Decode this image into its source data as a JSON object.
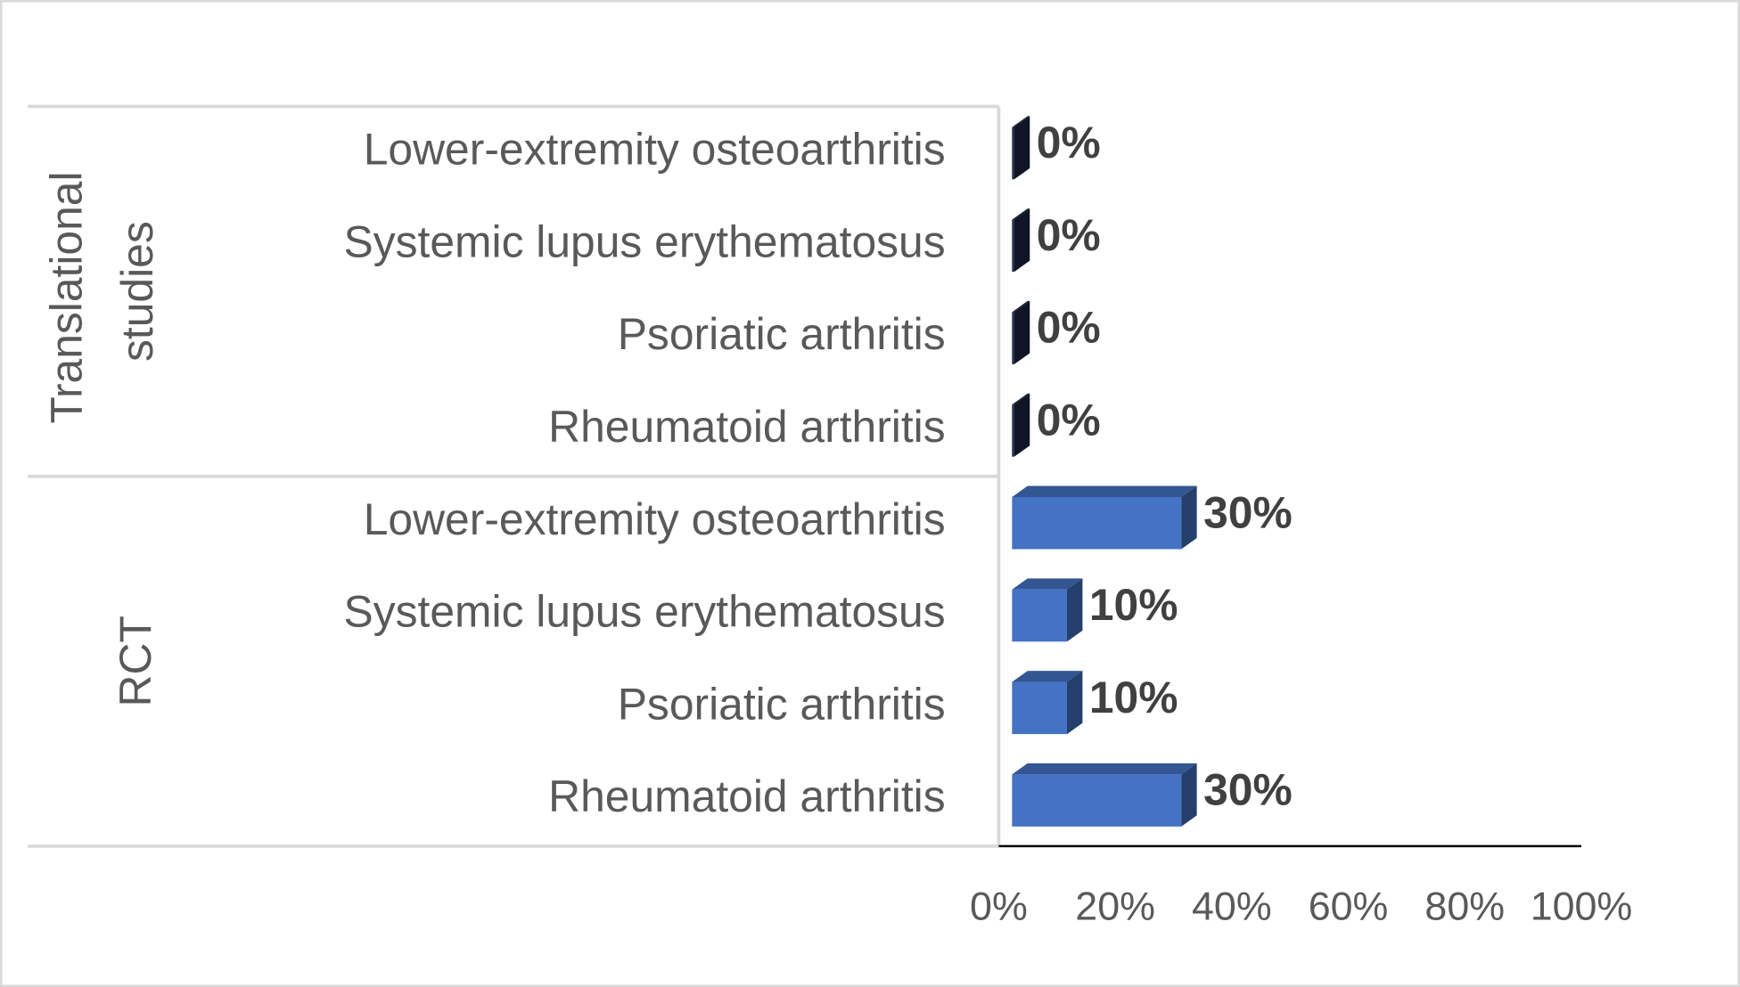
{
  "chart_data": {
    "type": "bar",
    "orientation": "horizontal",
    "groups": [
      {
        "name": "Translational studies",
        "color": "#1c2741",
        "categories": [
          "Lower-extremity osteoarthritis",
          "Systemic lupus erythematosus",
          "Psoriatic arthritis",
          "Rheumatoid arthritis"
        ],
        "values": [
          0,
          0,
          0,
          0
        ],
        "value_labels": [
          "0%",
          "0%",
          "0%",
          "0%"
        ]
      },
      {
        "name": "RCT",
        "color": "#4472c4",
        "categories": [
          "Lower-extremity osteoarthritis",
          "Systemic lupus erythematosus",
          "Psoriatic arthritis",
          "Rheumatoid arthritis"
        ],
        "values": [
          30,
          10,
          10,
          30
        ],
        "value_labels": [
          "30%",
          "10%",
          "10%",
          "30%"
        ]
      }
    ],
    "xlim": [
      0,
      100
    ],
    "xticks": [
      {
        "value": 0,
        "label": "0%"
      },
      {
        "value": 20,
        "label": "20%"
      },
      {
        "value": 40,
        "label": "40%"
      },
      {
        "value": 60,
        "label": "60%"
      },
      {
        "value": 80,
        "label": "80%"
      },
      {
        "value": 100,
        "label": "100%"
      }
    ],
    "grid": false
  }
}
